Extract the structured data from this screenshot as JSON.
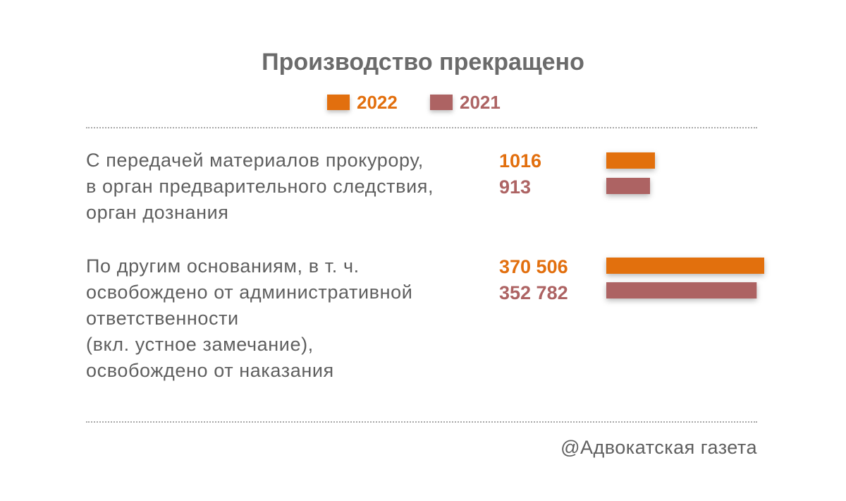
{
  "chart_data": {
    "type": "bar",
    "orientation": "horizontal",
    "title": "Производство прекращено",
    "categories": [
      [
        "С передачей материалов прокурору,",
        "в орган предварительного следствия,",
        "орган дознания"
      ],
      [
        "По другим основаниям, в т. ч.",
        "освобождено от административной",
        "ответственности",
        "(вкл. устное замечание),",
        "освобождено от наказания"
      ]
    ],
    "series": [
      {
        "name": "2022",
        "color": "#e26f0e",
        "values": [
          1016,
          370506
        ],
        "value_labels": [
          "1016",
          "370 506"
        ]
      },
      {
        "name": "2021",
        "color": "#ad6363",
        "values": [
          913,
          352782
        ],
        "value_labels": [
          "913",
          "352 782"
        ]
      }
    ],
    "legend_position": "top-center",
    "grid": false
  },
  "source": "@Адвокатская газета"
}
